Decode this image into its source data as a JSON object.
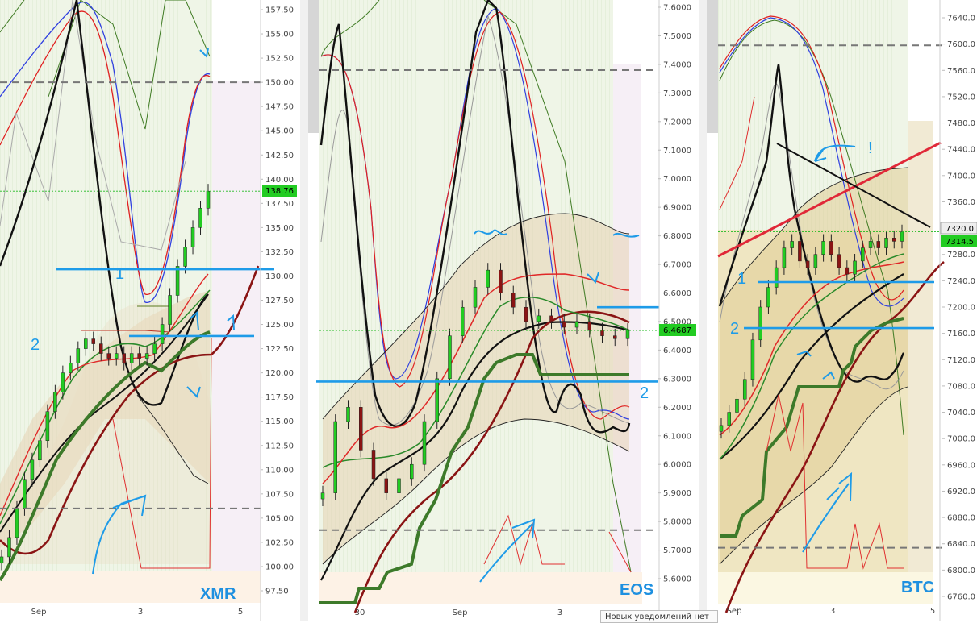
{
  "chart_data": [
    {
      "type": "candlestick",
      "symbol": "XMR",
      "y_ticks": [
        "157.50",
        "155.00",
        "152.50",
        "150.00",
        "147.50",
        "145.00",
        "142.50",
        "140.00",
        "137.50",
        "135.00",
        "132.50",
        "130.00",
        "127.50",
        "125.00",
        "122.50",
        "120.00",
        "117.50",
        "115.00",
        "112.50",
        "110.00",
        "107.50",
        "105.00",
        "102.50",
        "100.00",
        "97.50"
      ],
      "x_ticks": [
        "Sep",
        "3",
        "5"
      ],
      "ylim": [
        96.5,
        159.0
      ],
      "last_price": "138.76",
      "last_price_value": 138.76,
      "close_trend": [
        101,
        103,
        106,
        109,
        111,
        113,
        116,
        118,
        120,
        121,
        122.5,
        123.5,
        123,
        122,
        121.5,
        122,
        121,
        122,
        121.5,
        122,
        123,
        125,
        128,
        131,
        133,
        135,
        137,
        138.76
      ],
      "dashed_levels": [
        150.0,
        106.0
      ],
      "level_lines": [
        {
          "label": "1",
          "value": 130.7
        },
        {
          "label": "2",
          "value": 123.8
        }
      ]
    },
    {
      "type": "candlestick",
      "symbol": "EOS",
      "y_ticks": [
        "7.6000",
        "7.5000",
        "7.4000",
        "7.3000",
        "7.2000",
        "7.1000",
        "7.0000",
        "6.9000",
        "6.8000",
        "6.7000",
        "6.6000",
        "6.5000",
        "6.4000",
        "6.3000",
        "6.2000",
        "6.1000",
        "6.0000",
        "5.9000",
        "5.8000",
        "5.7000",
        "5.6000"
      ],
      "x_ticks": [
        "30",
        "Sep",
        "3"
      ],
      "ylim": [
        5.53,
        7.63
      ],
      "last_price": "6.4687",
      "last_price_value": 6.4687,
      "close_trend": [
        5.9,
        6.15,
        6.2,
        6.05,
        5.95,
        5.9,
        5.95,
        6.0,
        6.15,
        6.3,
        6.45,
        6.55,
        6.62,
        6.68,
        6.6,
        6.55,
        6.5,
        6.52,
        6.5,
        6.48,
        6.5,
        6.47,
        6.45,
        6.44,
        6.4687
      ],
      "dashed_levels": [
        7.38,
        5.77
      ],
      "level_lines": [
        {
          "label": "",
          "value": 6.55
        },
        {
          "label": "2",
          "value": 6.29
        }
      ]
    },
    {
      "type": "candlestick",
      "symbol": "BTC",
      "y_ticks": [
        "7640.0",
        "7600.0",
        "7560.0",
        "7520.0",
        "7480.0",
        "7440.0",
        "7400.0",
        "7360.0",
        "7320.0",
        "7280.0",
        "7240.0",
        "7200.0",
        "7160.0",
        "7120.0",
        "7080.0",
        "7040.0",
        "7000.0",
        "6960.0",
        "6920.0",
        "6880.0",
        "6840.0",
        "6800.0",
        "6760.0"
      ],
      "x_ticks": [
        "Sep",
        "3",
        "5"
      ],
      "ylim": [
        6752,
        7660
      ],
      "last_price": "7314.5",
      "last_price_value": 7314.5,
      "secondary_price": "7320.0",
      "secondary_price_value": 7320.0,
      "close_trend": [
        7020,
        7040,
        7060,
        7090,
        7150,
        7200,
        7230,
        7260,
        7290,
        7300,
        7270,
        7260,
        7280,
        7300,
        7280,
        7260,
        7250,
        7270,
        7290,
        7300,
        7290,
        7305,
        7300,
        7314.5
      ],
      "dashed_levels": [
        7598,
        6834
      ],
      "level_lines": [
        {
          "label": "1",
          "value": 7238
        },
        {
          "label": "2",
          "value": 7168
        }
      ],
      "annotation": "!"
    }
  ],
  "colors": {
    "bull": "#22cc22",
    "bear": "#8a1414",
    "annotation_blue": "#1e9be8",
    "trend_red": "#e02828",
    "dashed": "#777777",
    "grid_green": "#eef5e4"
  },
  "notifications": {
    "text": "Новых уведомлений нет"
  }
}
